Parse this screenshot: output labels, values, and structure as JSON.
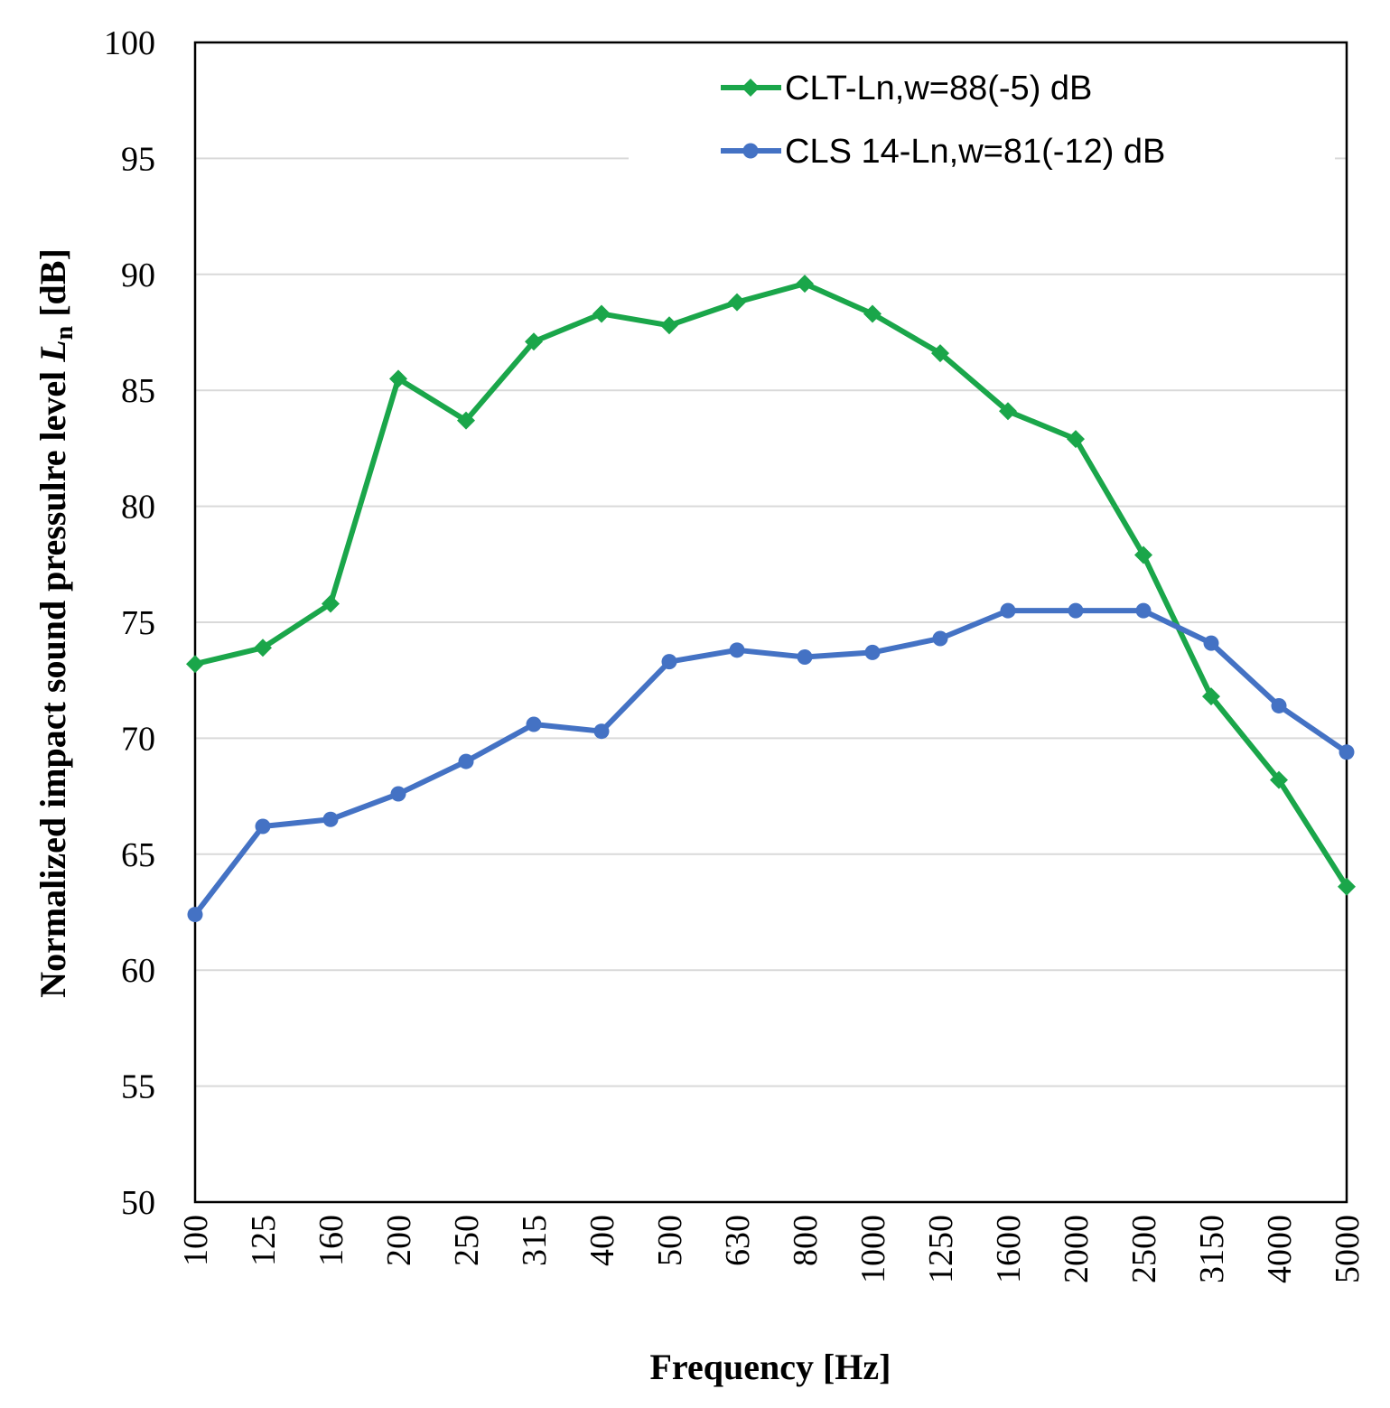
{
  "chart_data": {
    "type": "line",
    "categories": [
      "100",
      "125",
      "160",
      "200",
      "250",
      "315",
      "400",
      "500",
      "630",
      "800",
      "1000",
      "1250",
      "1600",
      "2000",
      "2500",
      "3150",
      "4000",
      "5000"
    ],
    "series": [
      {
        "name": "CLT-Ln,w=88(-5) dB",
        "color": "#1aa64a",
        "marker": "diamond",
        "values": [
          73.2,
          73.9,
          75.8,
          85.5,
          83.7,
          87.1,
          88.3,
          87.8,
          88.8,
          89.6,
          88.3,
          86.6,
          84.1,
          82.9,
          77.9,
          71.8,
          68.2,
          63.6
        ]
      },
      {
        "name": "CLS 14-Ln,w=81(-12) dB",
        "color": "#4472c4",
        "marker": "circle",
        "values": [
          62.4,
          66.2,
          66.5,
          67.6,
          69.0,
          70.6,
          70.3,
          73.3,
          73.8,
          73.5,
          73.7,
          74.3,
          75.5,
          75.5,
          75.5,
          74.1,
          71.4,
          69.4
        ]
      }
    ],
    "ylim": [
      50,
      100
    ],
    "yticks": [
      50,
      55,
      60,
      65,
      70,
      75,
      80,
      85,
      90,
      95,
      100
    ],
    "ylabel_main": "Normalized impact sound pressulre level ",
    "ylabel_symbol": "L",
    "ylabel_subscript": "n",
    "ylabel_unit": " [dB]",
    "xlabel": "Frequency [Hz]",
    "grid": true,
    "legend_position": "top-right"
  }
}
